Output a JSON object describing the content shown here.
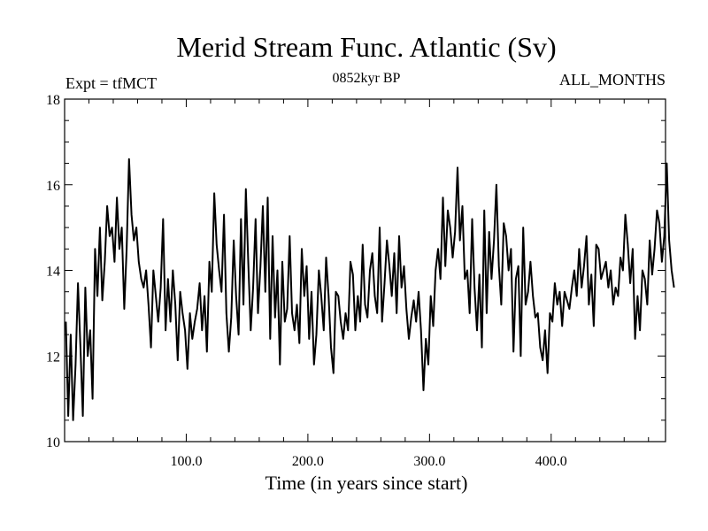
{
  "chart_data": {
    "type": "line",
    "title": "Merid Stream Func. Atlantic (Sv)",
    "subtitle_left": "Expt = tfMCT",
    "subtitle_center": "0852kyr BP",
    "subtitle_right": "ALL_MONTHS",
    "xlabel": "Time (in years since start)",
    "ylabel": "",
    "xlim": [
      0,
      494
    ],
    "ylim": [
      10,
      18
    ],
    "x_ticks": [
      100,
      200,
      300,
      400
    ],
    "x_tick_labels": [
      "100.0",
      "200.0",
      "300.0",
      "400.0"
    ],
    "y_ticks": [
      10,
      12,
      14,
      16,
      18
    ],
    "y_tick_labels": [
      "10",
      "12",
      "14",
      "16",
      "18"
    ],
    "grid": false,
    "series": [
      {
        "name": "Merid Stream Func. Atlantic",
        "x_start": 1,
        "x_step": 2,
        "color": "#000000",
        "values": [
          12.8,
          10.6,
          12.5,
          10.5,
          11.8,
          13.7,
          12.2,
          10.6,
          13.6,
          12.0,
          12.6,
          11.0,
          14.5,
          13.4,
          15.0,
          13.3,
          14.2,
          15.5,
          14.8,
          15.0,
          14.2,
          15.7,
          14.5,
          15.0,
          13.1,
          14.5,
          16.6,
          15.3,
          14.7,
          15.0,
          14.2,
          13.8,
          13.6,
          14.0,
          13.2,
          12.2,
          14.0,
          13.4,
          12.8,
          13.6,
          15.2,
          12.6,
          13.8,
          12.8,
          14.0,
          13.2,
          11.9,
          13.5,
          13.0,
          12.6,
          11.7,
          13.0,
          12.4,
          12.8,
          13.1,
          13.7,
          12.6,
          13.4,
          12.1,
          14.2,
          13.5,
          15.8,
          14.6,
          14.0,
          13.5,
          15.3,
          13.0,
          12.1,
          12.9,
          14.7,
          13.4,
          12.5,
          15.2,
          13.2,
          15.9,
          14.2,
          12.6,
          13.6,
          15.2,
          13.0,
          14.1,
          15.5,
          13.5,
          15.7,
          12.4,
          14.8,
          12.9,
          14.0,
          11.8,
          14.2,
          12.8,
          13.1,
          14.8,
          13.0,
          12.6,
          13.2,
          12.3,
          14.5,
          13.4,
          14.1,
          12.4,
          13.5,
          11.8,
          12.5,
          14.0,
          13.4,
          12.6,
          14.3,
          13.4,
          12.2,
          11.6,
          13.5,
          13.4,
          12.8,
          12.4,
          13.0,
          12.6,
          14.2,
          13.9,
          12.6,
          13.4,
          12.8,
          14.6,
          13.2,
          12.9,
          14.0,
          14.4,
          13.4,
          13.0,
          15.0,
          12.8,
          13.7,
          14.7,
          14.1,
          13.4,
          14.4,
          13.0,
          14.8,
          13.6,
          14.1,
          13.1,
          12.4,
          12.9,
          13.3,
          12.8,
          13.5,
          12.6,
          11.2,
          12.4,
          11.8,
          13.4,
          12.7,
          14.0,
          14.5,
          13.8,
          15.7,
          14.1,
          15.4,
          15.0,
          14.3,
          14.9,
          16.4,
          14.7,
          15.5,
          13.8,
          14.0,
          13.0,
          15.2,
          13.6,
          12.6,
          13.9,
          12.2,
          15.4,
          13.0,
          14.9,
          13.8,
          14.7,
          16.0,
          14.1,
          13.2,
          15.1,
          14.8,
          14.0,
          14.5,
          12.1,
          13.8,
          14.1,
          12.0,
          15.0,
          13.2,
          13.5,
          14.2,
          13.4,
          12.9,
          13.0,
          12.2,
          11.9,
          12.6,
          11.6,
          13.0,
          12.8,
          13.7,
          13.2,
          13.5,
          12.7,
          13.5,
          13.3,
          13.1,
          13.6,
          14.0,
          13.4,
          14.5,
          13.6,
          14.1,
          14.8,
          13.2,
          13.9,
          12.7,
          14.6,
          14.5,
          13.8,
          14.0,
          14.2,
          13.6,
          14.0,
          13.2,
          13.6,
          13.4,
          14.3,
          14.0,
          15.3,
          14.6,
          13.7,
          14.5,
          12.4,
          13.4,
          12.6,
          14.0,
          13.8,
          13.2,
          14.7,
          13.9,
          14.5,
          15.4,
          15.1,
          14.2,
          14.8,
          16.5,
          14.7,
          14.0,
          13.6
        ]
      }
    ]
  }
}
